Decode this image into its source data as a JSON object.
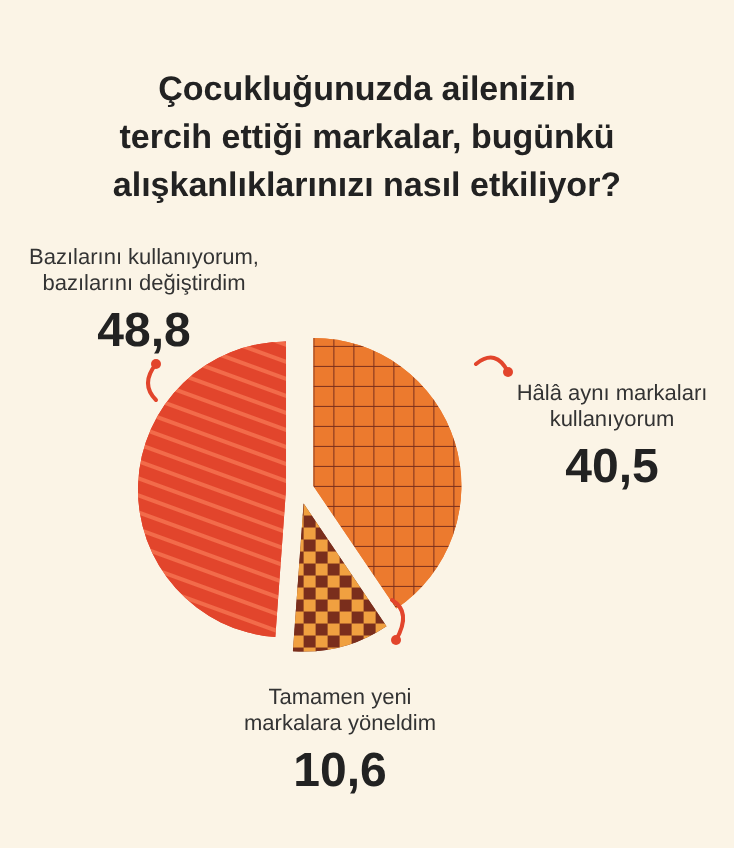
{
  "chart_data": {
    "type": "pie",
    "title": "Çocukluğunuzda ailenizin\ntercih ettiği markalar, bugünkü\nalışkanlıklarınızı nasıl etkiliyor?",
    "categories": [
      "Hâlâ aynı markaları\nkullanıyorum",
      "Tamamen yeni\nmarkalara yöneldim",
      "Bazılarını kullanıyorum,\nbazılarını değiştirdim"
    ],
    "values": [
      40.5,
      10.6,
      48.8
    ],
    "value_labels": [
      "40,5",
      "10,6",
      "48,8"
    ],
    "colors": [
      "#ec7a2e",
      "#7a2e1c",
      "#e2452c"
    ]
  }
}
